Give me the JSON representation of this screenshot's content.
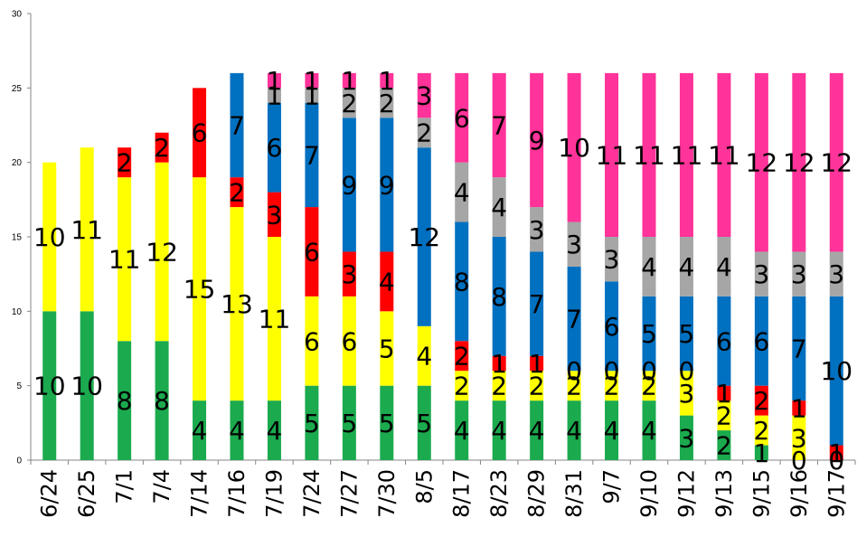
{
  "chart_data": {
    "type": "bar",
    "stacked": true,
    "categories": [
      "6/24",
      "6/25",
      "7/1",
      "7/4",
      "7/14",
      "7/16",
      "7/19",
      "7/24",
      "7/27",
      "7/30",
      "8/5",
      "8/17",
      "8/23",
      "8/29",
      "8/31",
      "9/7",
      "9/10",
      "9/12",
      "9/13",
      "9/15",
      "9/16",
      "9/17"
    ],
    "series": [
      {
        "color": "#1BAA4E",
        "values": [
          10,
          10,
          8,
          8,
          4,
          4,
          4,
          5,
          5,
          5,
          5,
          4,
          4,
          4,
          4,
          4,
          4,
          3,
          2,
          1,
          0,
          0
        ]
      },
      {
        "color": "#FFFF00",
        "values": [
          10,
          11,
          11,
          12,
          15,
          13,
          11,
          6,
          6,
          5,
          4,
          2,
          2,
          2,
          2,
          2,
          2,
          3,
          2,
          2,
          3,
          0
        ]
      },
      {
        "color": "#FF0000",
        "values": [
          0,
          0,
          2,
          2,
          6,
          2,
          3,
          6,
          3,
          4,
          0,
          2,
          1,
          1,
          0,
          0,
          0,
          0,
          1,
          2,
          1,
          1
        ]
      },
      {
        "color": "#0070C0",
        "values": [
          0,
          0,
          0,
          0,
          0,
          7,
          6,
          7,
          9,
          9,
          12,
          8,
          8,
          7,
          7,
          6,
          5,
          5,
          6,
          6,
          7,
          10
        ]
      },
      {
        "color": "#A6A6A6",
        "values": [
          0,
          0,
          0,
          0,
          0,
          0,
          1,
          1,
          2,
          2,
          2,
          4,
          4,
          3,
          3,
          3,
          4,
          4,
          4,
          3,
          3,
          3
        ]
      },
      {
        "color": "#FF3399",
        "values": [
          0,
          0,
          0,
          0,
          0,
          0,
          1,
          1,
          1,
          1,
          3,
          6,
          7,
          9,
          10,
          11,
          11,
          11,
          11,
          12,
          12,
          12
        ]
      }
    ],
    "data_labels": [
      [
        "10",
        "10",
        "8",
        "8",
        "4",
        "4",
        "4",
        "5",
        "5",
        "5",
        "5",
        "4",
        "4",
        "4",
        "4",
        "4",
        "4",
        "3",
        "2",
        "1",
        "0",
        "0"
      ],
      [
        "10",
        "11",
        "11",
        "12",
        "15",
        "13",
        "11",
        "6",
        "6",
        "5",
        "4",
        "2",
        "2",
        "2",
        "2",
        "2",
        "2",
        "3",
        "2",
        "2",
        "3",
        ""
      ],
      [
        "",
        "",
        "2",
        "2",
        "6",
        "2",
        "3",
        "6",
        "3",
        "4",
        "",
        "2",
        "1",
        "1",
        "0",
        "0",
        "0",
        "0",
        "1",
        "2",
        "1",
        "1"
      ],
      [
        "",
        "",
        "",
        "",
        "",
        "7",
        "6",
        "7",
        "9",
        "9",
        "12",
        "8",
        "8",
        "7",
        "7",
        "6",
        "5",
        "5",
        "6",
        "6",
        "7",
        "10"
      ],
      [
        "",
        "",
        "",
        "",
        "",
        "",
        "1",
        "1",
        "2",
        "2",
        "2",
        "4",
        "4",
        "3",
        "3",
        "3",
        "4",
        "4",
        "4",
        "3",
        "3",
        "3"
      ],
      [
        "",
        "",
        "",
        "",
        "",
        "",
        "1",
        "1",
        "1",
        "1",
        "3",
        "6",
        "7",
        "9",
        "10",
        "11",
        "11",
        "11",
        "11",
        "12",
        "12",
        "12"
      ]
    ],
    "ylim": [
      0,
      30
    ],
    "yticks": [
      0,
      5,
      10,
      15,
      20,
      25,
      30
    ],
    "title": "",
    "xlabel": "",
    "ylabel": "",
    "grid": false,
    "legend": "none"
  }
}
